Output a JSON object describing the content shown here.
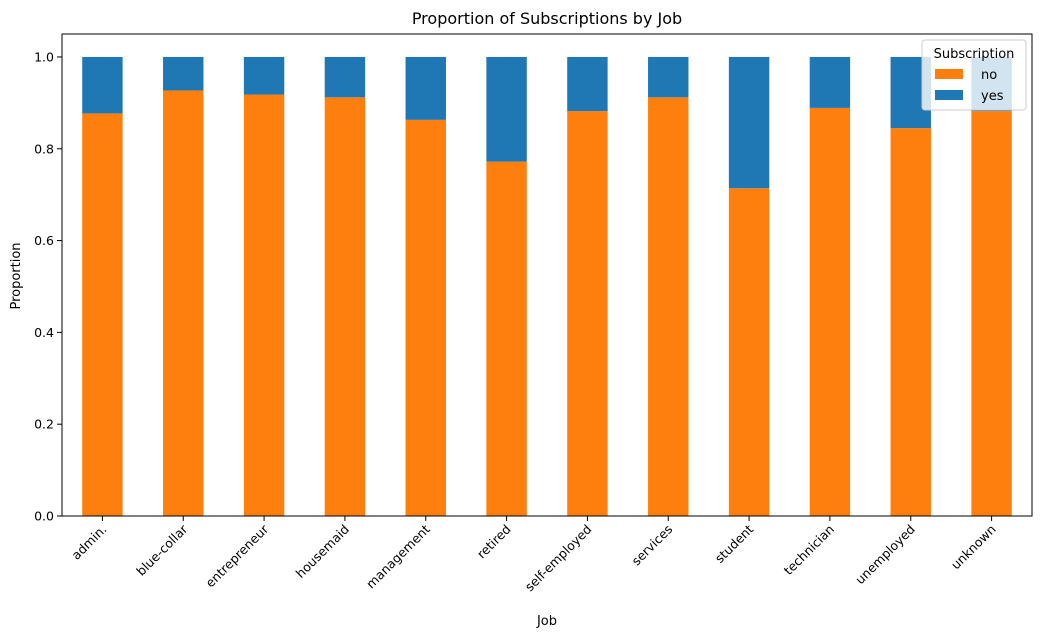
{
  "chart_data": {
    "type": "bar",
    "stacked": true,
    "title": "Proportion of Subscriptions by Job",
    "xlabel": "Job",
    "ylabel": "Proportion",
    "ylim": [
      0,
      1.05
    ],
    "yticks": [
      "0.0",
      "0.2",
      "0.4",
      "0.6",
      "0.8",
      "1.0"
    ],
    "grid": false,
    "legend": {
      "title": "Subscription",
      "placement": "top-right"
    },
    "categories": [
      "admin.",
      "blue-collar",
      "entrepreneur",
      "housemaid",
      "management",
      "retired",
      "self-employed",
      "services",
      "student",
      "technician",
      "unemployed",
      "unknown"
    ],
    "series": [
      {
        "name": "no",
        "color": "#ff7f0e",
        "values": [
          0.877,
          0.927,
          0.918,
          0.912,
          0.863,
          0.772,
          0.882,
          0.912,
          0.714,
          0.889,
          0.845,
          0.882
        ]
      },
      {
        "name": "yes",
        "color": "#1f77b4",
        "values": [
          0.123,
          0.073,
          0.082,
          0.088,
          0.137,
          0.228,
          0.118,
          0.088,
          0.286,
          0.111,
          0.155,
          0.118
        ]
      }
    ]
  }
}
